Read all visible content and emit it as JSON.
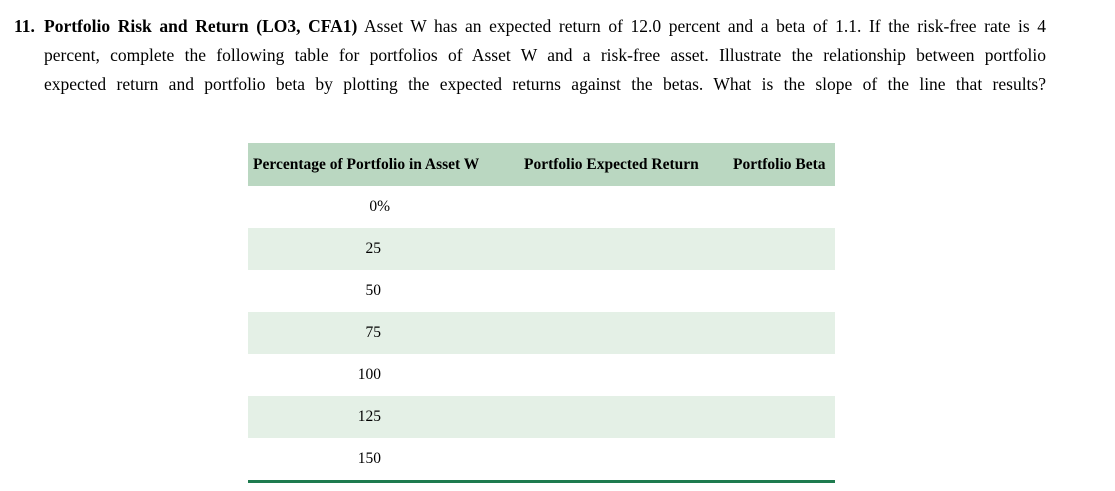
{
  "problem": {
    "number": "11.",
    "lines": [
      {
        "bold": "Portfolio Risk and Return (LO3, CFA1)",
        "text": " Asset W has an expected return of 12.0 percent and a beta of 1.1. If the risk-free rate is 4"
      },
      {
        "text": "percent, complete the following table for portfolios of Asset W and a risk-free asset. Illustrate the relationship between portfolio"
      },
      {
        "text": "expected return and portfolio beta by plotting the expected returns against the betas. What is the slope of the line that results?"
      }
    ]
  },
  "table": {
    "headers": [
      "Percentage of Portfolio in Asset W",
      "Portfolio Expected Return",
      "Portfolio Beta"
    ],
    "rows": [
      {
        "percentage": "0%",
        "expected_return": "",
        "beta": ""
      },
      {
        "percentage": "25",
        "expected_return": "",
        "beta": ""
      },
      {
        "percentage": "50",
        "expected_return": "",
        "beta": ""
      },
      {
        "percentage": "75",
        "expected_return": "",
        "beta": ""
      },
      {
        "percentage": "100",
        "expected_return": "",
        "beta": ""
      },
      {
        "percentage": "125",
        "expected_return": "",
        "beta": ""
      },
      {
        "percentage": "150",
        "expected_return": "",
        "beta": ""
      }
    ],
    "colors": {
      "header_bg": "#bad7c1",
      "stripe_bg": "#e4f0e6",
      "bottom_border": "#1e7b4f",
      "text": "#000000"
    }
  }
}
